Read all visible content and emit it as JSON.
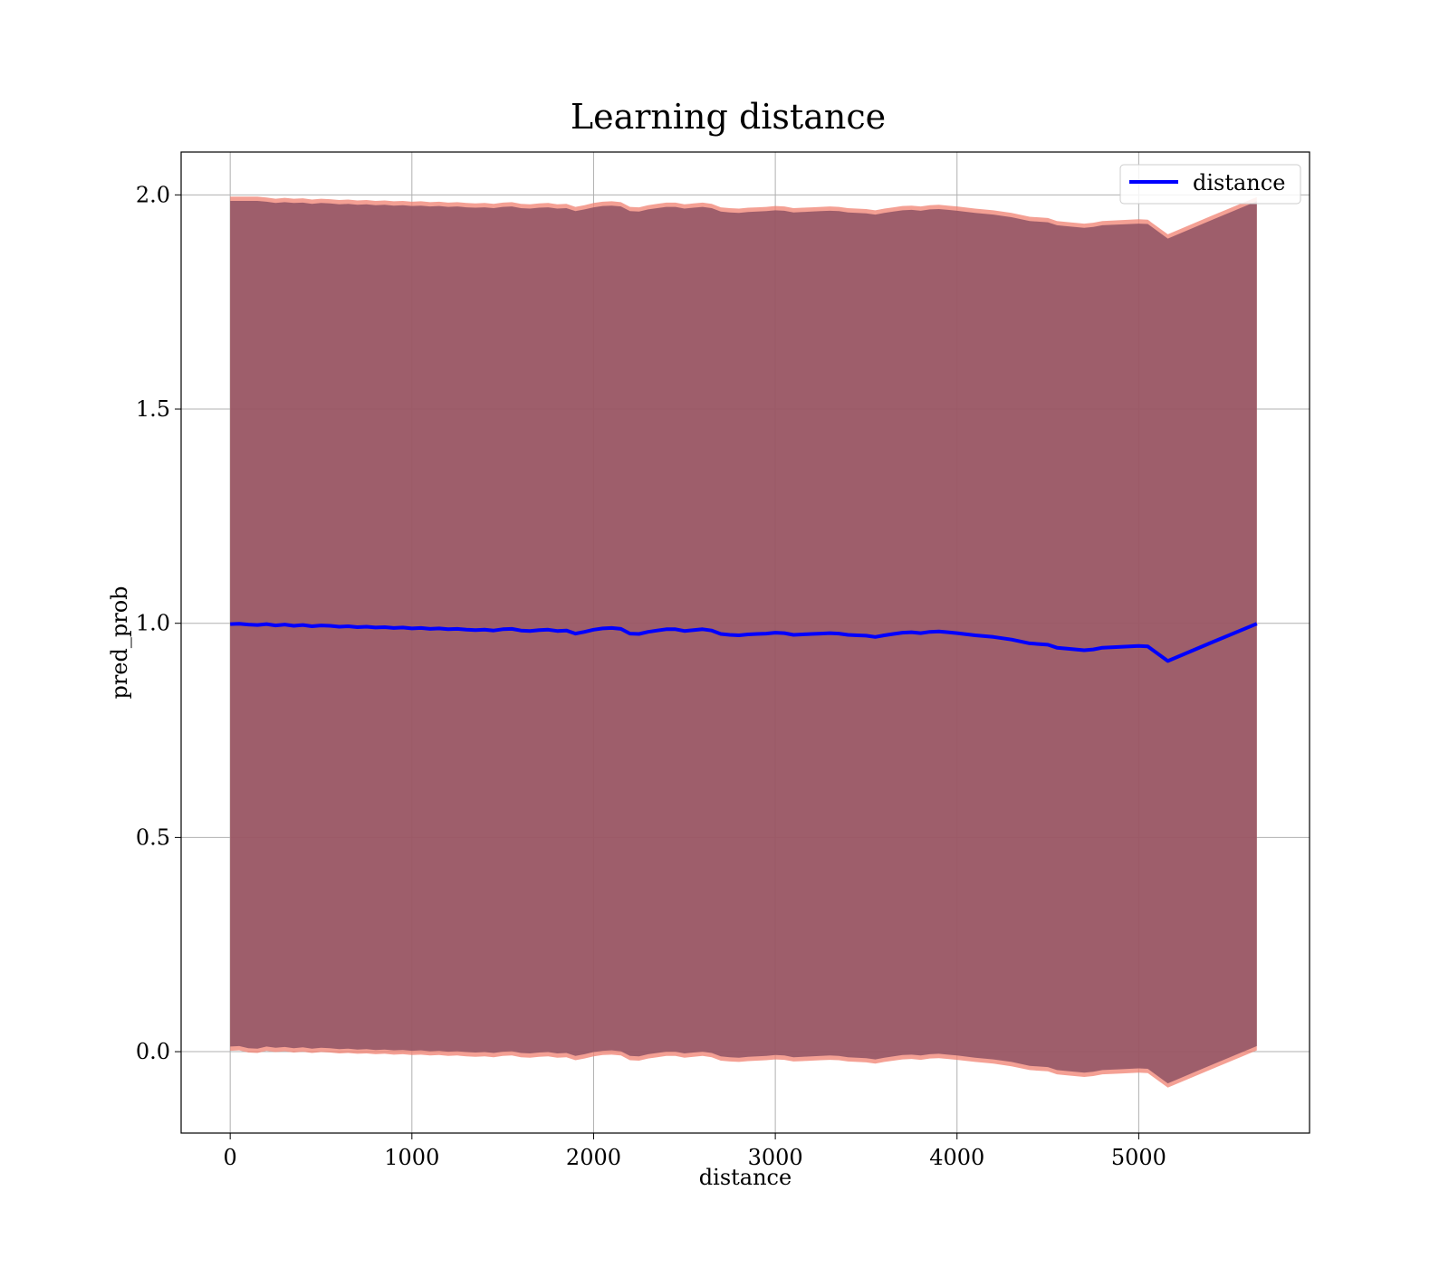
{
  "chart_data": {
    "type": "line",
    "title": "Learning distance",
    "xlabel": "distance",
    "ylabel": "pred_prob",
    "xlim": [
      -270,
      5940
    ],
    "ylim": [
      -0.19,
      2.1
    ],
    "xticks": [
      0,
      1000,
      2000,
      3000,
      4000,
      5000
    ],
    "xtick_labels": [
      "0",
      "1000",
      "2000",
      "3000",
      "4000",
      "5000"
    ],
    "yticks": [
      0.0,
      0.5,
      1.0,
      1.5,
      2.0
    ],
    "ytick_labels": [
      "0.0",
      "0.5",
      "1.0",
      "1.5",
      "2.0"
    ],
    "grid": true,
    "legend": {
      "position": "top-right",
      "entries": [
        "distance"
      ]
    },
    "colors": {
      "line": "#0000ff",
      "band_outer": "#f08070",
      "band_inner": "#8b4f62",
      "grid": "#b0b0b0"
    },
    "series": [
      {
        "name": "distance",
        "x": [
          0,
          50,
          100,
          150,
          200,
          250,
          300,
          350,
          400,
          450,
          500,
          550,
          600,
          650,
          700,
          750,
          800,
          850,
          900,
          950,
          1000,
          1050,
          1100,
          1150,
          1200,
          1250,
          1300,
          1350,
          1400,
          1450,
          1500,
          1550,
          1600,
          1650,
          1700,
          1750,
          1800,
          1850,
          1900,
          1950,
          2000,
          2050,
          2100,
          2150,
          2200,
          2250,
          2300,
          2350,
          2400,
          2450,
          2500,
          2550,
          2600,
          2650,
          2700,
          2750,
          2800,
          2850,
          2900,
          2950,
          3000,
          3050,
          3100,
          3150,
          3200,
          3250,
          3300,
          3350,
          3400,
          3450,
          3500,
          3550,
          3600,
          3650,
          3700,
          3750,
          3800,
          3850,
          3900,
          3950,
          4000,
          4100,
          4200,
          4300,
          4400,
          4500,
          4550,
          4600,
          4700,
          4750,
          4800,
          4900,
          5000,
          5050,
          5160,
          5400,
          5650
        ],
        "y": [
          0.998,
          0.999,
          0.997,
          0.996,
          0.998,
          0.995,
          0.997,
          0.994,
          0.996,
          0.993,
          0.995,
          0.994,
          0.992,
          0.993,
          0.991,
          0.992,
          0.99,
          0.991,
          0.989,
          0.99,
          0.988,
          0.989,
          0.987,
          0.988,
          0.986,
          0.987,
          0.985,
          0.984,
          0.985,
          0.983,
          0.986,
          0.987,
          0.983,
          0.982,
          0.984,
          0.985,
          0.982,
          0.983,
          0.976,
          0.98,
          0.985,
          0.988,
          0.989,
          0.987,
          0.976,
          0.975,
          0.98,
          0.983,
          0.986,
          0.986,
          0.982,
          0.984,
          0.986,
          0.983,
          0.975,
          0.973,
          0.972,
          0.974,
          0.975,
          0.976,
          0.978,
          0.977,
          0.973,
          0.974,
          0.975,
          0.976,
          0.977,
          0.976,
          0.973,
          0.972,
          0.971,
          0.968,
          0.972,
          0.975,
          0.978,
          0.979,
          0.977,
          0.98,
          0.981,
          0.979,
          0.977,
          0.972,
          0.968,
          0.962,
          0.953,
          0.95,
          0.943,
          0.941,
          0.937,
          0.939,
          0.943,
          0.945,
          0.947,
          0.946,
          0.912,
          0.955,
          0.999
        ],
        "upper": [
          1.99,
          1.99,
          1.99,
          1.99,
          1.988,
          1.985,
          1.987,
          1.985,
          1.986,
          1.983,
          1.985,
          1.984,
          1.982,
          1.983,
          1.981,
          1.982,
          1.98,
          1.981,
          1.979,
          1.98,
          1.978,
          1.979,
          1.977,
          1.978,
          1.976,
          1.977,
          1.975,
          1.974,
          1.975,
          1.973,
          1.976,
          1.977,
          1.973,
          1.972,
          1.974,
          1.975,
          1.972,
          1.973,
          1.966,
          1.97,
          1.975,
          1.978,
          1.979,
          1.977,
          1.966,
          1.965,
          1.97,
          1.973,
          1.976,
          1.976,
          1.972,
          1.974,
          1.976,
          1.973,
          1.965,
          1.963,
          1.962,
          1.964,
          1.965,
          1.966,
          1.968,
          1.967,
          1.963,
          1.964,
          1.965,
          1.966,
          1.967,
          1.966,
          1.963,
          1.962,
          1.961,
          1.958,
          1.962,
          1.965,
          1.968,
          1.969,
          1.967,
          1.97,
          1.971,
          1.969,
          1.967,
          1.962,
          1.958,
          1.952,
          1.943,
          1.94,
          1.933,
          1.931,
          1.927,
          1.929,
          1.933,
          1.935,
          1.937,
          1.936,
          1.902,
          1.945,
          1.989
        ],
        "lower": [
          0.008,
          0.009,
          0.004,
          0.003,
          0.008,
          0.005,
          0.007,
          0.004,
          0.006,
          0.003,
          0.005,
          0.004,
          0.002,
          0.003,
          0.001,
          0.002,
          0.0,
          0.001,
          -0.001,
          0.0,
          -0.002,
          -0.001,
          -0.003,
          -0.002,
          -0.004,
          -0.003,
          -0.005,
          -0.006,
          -0.005,
          -0.007,
          -0.004,
          -0.003,
          -0.007,
          -0.008,
          -0.006,
          -0.005,
          -0.008,
          -0.007,
          -0.014,
          -0.01,
          -0.005,
          -0.002,
          -0.001,
          -0.003,
          -0.014,
          -0.015,
          -0.01,
          -0.007,
          -0.004,
          -0.004,
          -0.008,
          -0.006,
          -0.004,
          -0.007,
          -0.015,
          -0.017,
          -0.018,
          -0.016,
          -0.015,
          -0.014,
          -0.012,
          -0.013,
          -0.017,
          -0.016,
          -0.015,
          -0.014,
          -0.013,
          -0.014,
          -0.017,
          -0.018,
          -0.019,
          -0.022,
          -0.018,
          -0.015,
          -0.012,
          -0.011,
          -0.013,
          -0.01,
          -0.009,
          -0.011,
          -0.013,
          -0.018,
          -0.022,
          -0.028,
          -0.037,
          -0.04,
          -0.047,
          -0.049,
          -0.053,
          -0.051,
          -0.047,
          -0.045,
          -0.043,
          -0.044,
          -0.078,
          -0.035,
          0.009
        ]
      }
    ]
  }
}
